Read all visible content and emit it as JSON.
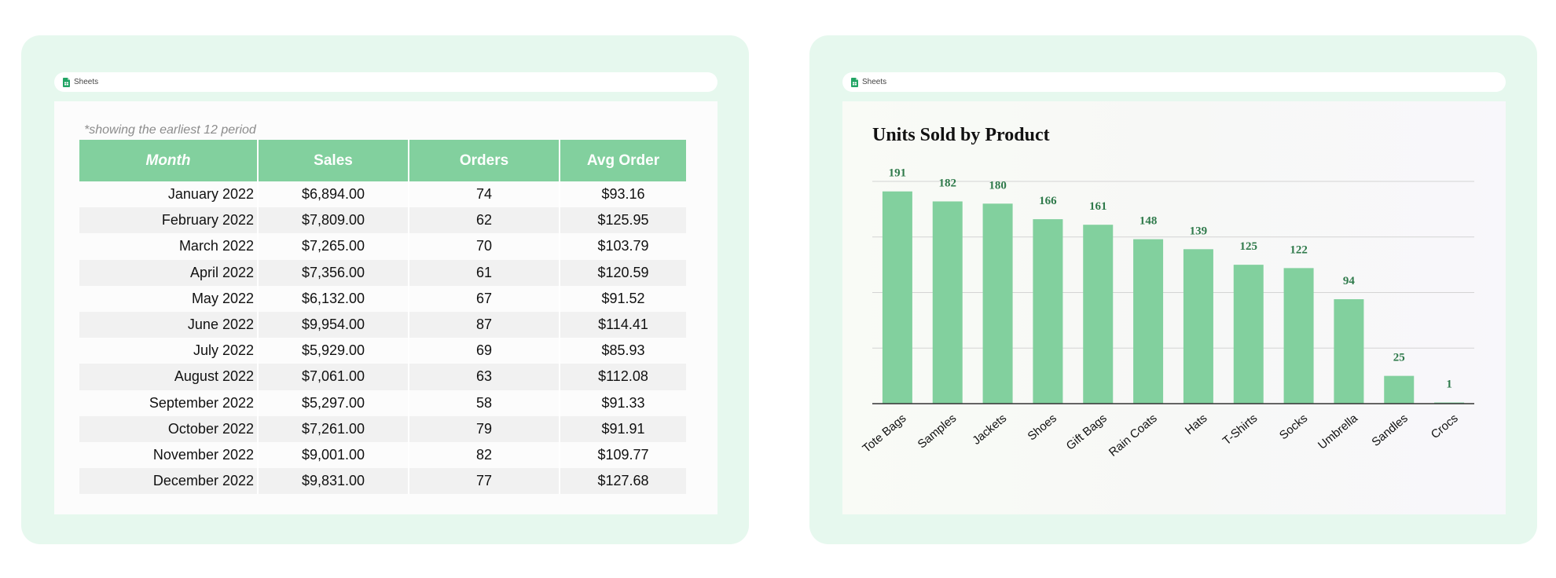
{
  "left_window": {
    "app_name": "Sheets",
    "note": "*showing the earliest 12 period",
    "columns": [
      "Month",
      "Sales",
      "Orders",
      "Avg Order"
    ],
    "rows": [
      [
        "January 2022",
        "$6,894.00",
        "74",
        "$93.16"
      ],
      [
        "February 2022",
        "$7,809.00",
        "62",
        "$125.95"
      ],
      [
        "March 2022",
        "$7,265.00",
        "70",
        "$103.79"
      ],
      [
        "April 2022",
        "$7,356.00",
        "61",
        "$120.59"
      ],
      [
        "May 2022",
        "$6,132.00",
        "67",
        "$91.52"
      ],
      [
        "June 2022",
        "$9,954.00",
        "87",
        "$114.41"
      ],
      [
        "July 2022",
        "$5,929.00",
        "69",
        "$85.93"
      ],
      [
        "August 2022",
        "$7,061.00",
        "63",
        "$112.08"
      ],
      [
        "September 2022",
        "$5,297.00",
        "58",
        "$91.33"
      ],
      [
        "October 2022",
        "$7,261.00",
        "79",
        "$91.91"
      ],
      [
        "November 2022",
        "$9,001.00",
        "82",
        "$109.77"
      ],
      [
        "December 2022",
        "$9,831.00",
        "77",
        "$127.68"
      ]
    ]
  },
  "right_window": {
    "app_name": "Sheets"
  },
  "colors": {
    "accent": "#82d09e",
    "panel_bg": "#e6f8ee",
    "bar_label": "#2f7a4b"
  },
  "icons": {
    "app": "sheets-icon"
  },
  "chart_data": {
    "type": "bar",
    "title": "Units Sold by Product",
    "categories": [
      "Tote Bags",
      "Samples",
      "Jackets",
      "Shoes",
      "Gift Bags",
      "Rain Coats",
      "Hats",
      "T-Shirts",
      "Socks",
      "Umbrella",
      "Sandles",
      "Crocs"
    ],
    "values": [
      191,
      182,
      180,
      166,
      161,
      148,
      139,
      125,
      122,
      94,
      25,
      1
    ],
    "xlabel": "",
    "ylabel": "",
    "ylim": [
      0,
      200
    ],
    "grid": true,
    "data_labels": true,
    "y_tick_labels_shown": false
  }
}
